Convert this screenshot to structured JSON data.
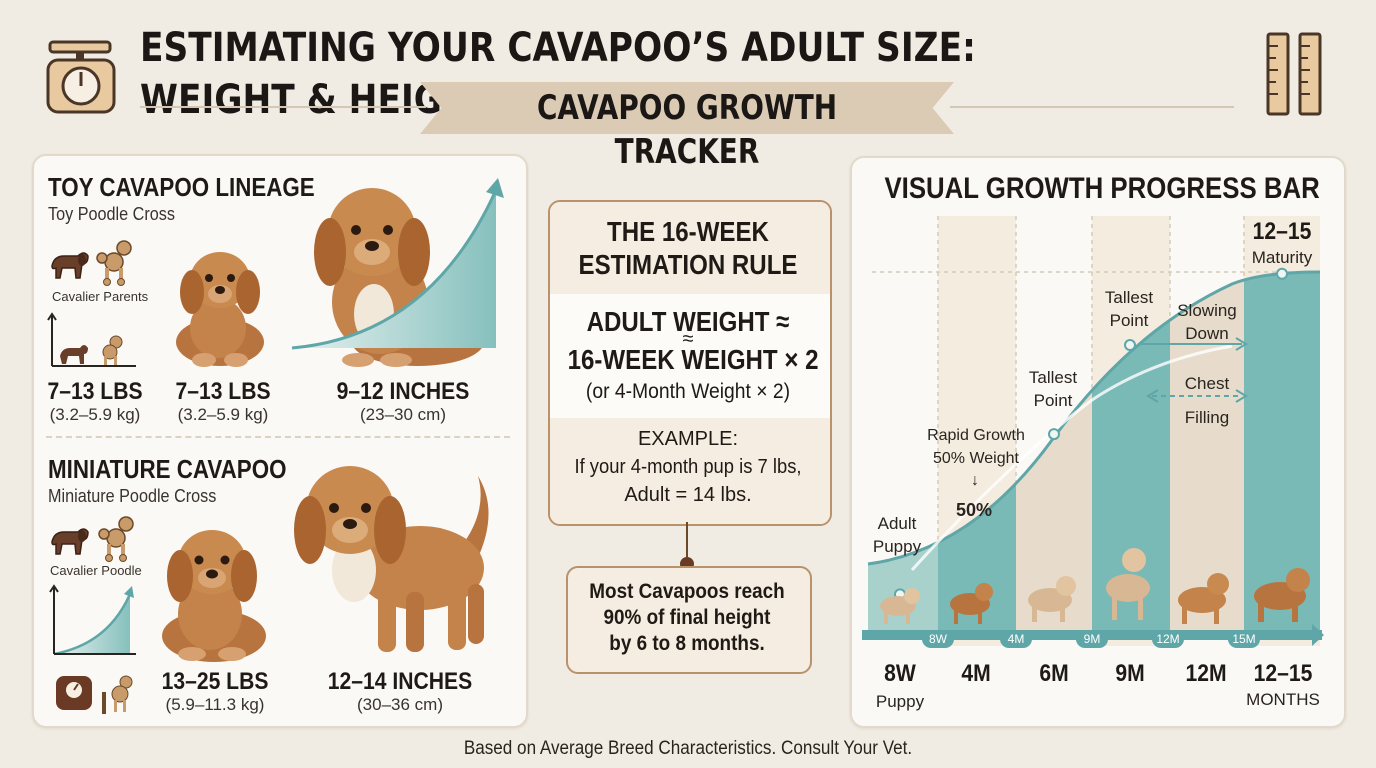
{
  "header": {
    "title": "ESTIMATING YOUR CAVAPOO’S ADULT SIZE: WEIGHT & HEIGHT GUIDE",
    "ribbon": "CAVAPOO GROWTH TRACKER"
  },
  "left": {
    "toy": {
      "title": "TOY CAVAPOO LINEAGE",
      "subtitle": "Toy Poodle Cross",
      "parents_label": "Cavalier Parents",
      "weight1": "7–13 LBS",
      "weight1_kg": "(3.2–5.9 kg)",
      "weight2": "7–13 LBS",
      "weight2_kg": "(3.2–5.9 kg)",
      "height": "9–12 INCHES",
      "height_cm": "(23–30 cm)"
    },
    "mini": {
      "title": "MINIATURE CAVAPOO",
      "subtitle": "Miniature Poodle Cross",
      "parents_label": "Cavalier Poodle",
      "weight": "13–25 LBS",
      "weight_kg": "(5.9–11.3 kg)",
      "height": "12–14 INCHES",
      "height_cm": "(30–36 cm)"
    }
  },
  "center": {
    "rule_title_1": "THE 16-WEEK",
    "rule_title_2": "ESTIMATION RULE",
    "formula_1": "ADULT WEIGHT ≈",
    "formula_approx": "≈",
    "formula_2": "16-WEEK WEIGHT × 2",
    "formula_3": "(or 4-Month Weight × 2)",
    "example_title": "EXAMPLE:",
    "example_1": "If your 4-month pup is 7 lbs,",
    "example_2": "Adult = 14 lbs.",
    "note_1": "Most Cavapoos reach",
    "note_2": "90% of final height",
    "note_3": "by 6 to 8 months."
  },
  "right": {
    "title": "VISUAL GROWTH PROGRESS BAR",
    "maturity_top": "12–15",
    "maturity_label": "Maturity",
    "ann_tallest_1": "Tallest",
    "ann_tallest_2": "Point",
    "ann_slowing_1": "Slowing",
    "ann_slowing_2": "Down",
    "ann_chest_1": "Chest",
    "ann_chest_2": "Filling",
    "ann_tallest2_1": "Tallest",
    "ann_tallest2_2": "Point",
    "ann_rapid_1": "Rapid Growth",
    "ann_rapid_2": "50% Weight",
    "ann_arrow": "↓",
    "ann_50": "50%",
    "ann_adult_1": "Adult",
    "ann_adult_2": "Puppy",
    "pills": [
      "8W",
      "4M",
      "9M",
      "12M",
      "15M"
    ],
    "ticks": [
      "8W",
      "4M",
      "6M",
      "9M",
      "12M",
      "12–15"
    ],
    "tick_sub_first": "Puppy",
    "tick_sub_last": "MONTHS",
    "curve_points": [
      {
        "x": "8W",
        "y": 10
      },
      {
        "x": "4M",
        "y": 28
      },
      {
        "x": "6M",
        "y": 55
      },
      {
        "x": "9M",
        "y": 80
      },
      {
        "x": "12M",
        "y": 93
      },
      {
        "x": "12–15",
        "y": 100
      }
    ]
  },
  "footer": "Based on Average Breed Characteristics. Consult Your Vet.",
  "colors": {
    "background": "#f1ece3",
    "teal": "#6fb3b3",
    "beige": "#dccbb4",
    "brown_border": "#b8926a"
  }
}
